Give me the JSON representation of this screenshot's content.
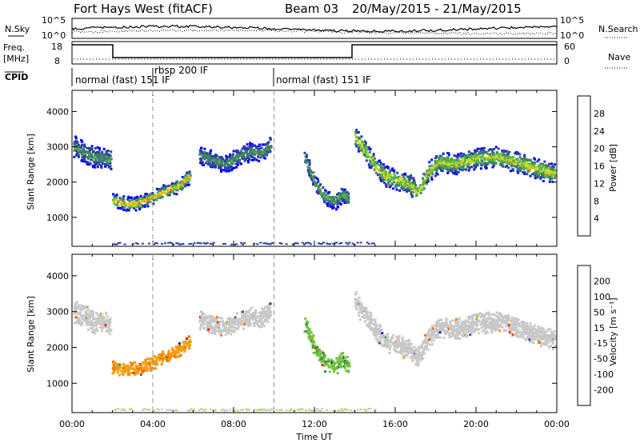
{
  "header": {
    "site": "Fort Hays West (fitACF)",
    "beam": "Beam 03",
    "dates": "20/May/2015 - 21/May/2015"
  },
  "strips": {
    "nsky_label": "N.Sky",
    "nsearch_label": "N.Search",
    "nsky_ticks": [
      "10^5",
      "10^0"
    ],
    "freq_label": "Freq.",
    "freq_unit": "[MHz]",
    "freq_ticks": [
      "18",
      "8"
    ],
    "nave_label": "Nave",
    "nave_ticks": [
      "60",
      "0"
    ],
    "cpid_label": "CPID",
    "cpid_segments": [
      {
        "label": "normal (fast) 151 IF",
        "start_h": 0,
        "end_h": 4
      },
      {
        "label": "rbsp 200 IF",
        "start_h": 4,
        "end_h": 10
      },
      {
        "label": "normal (fast) 151 IF",
        "start_h": 10,
        "end_h": 24
      }
    ]
  },
  "chart_data": [
    {
      "type": "heatmap",
      "quantity": "Power",
      "ylabel": "Slant Range [km]",
      "xlabel": "Time UT",
      "ylim": [
        180,
        4600
      ],
      "xlim_hours": [
        0,
        24
      ],
      "yticks": [
        1000,
        2000,
        3000,
        4000
      ],
      "colorbar": {
        "label": "Power [dB]",
        "ticks": [
          "28",
          "24",
          "20",
          "16",
          "12",
          "8",
          "4"
        ],
        "colors": [
          "#0000ff",
          "#2c3fa5",
          "#3f7f6a",
          "#56b34a",
          "#c8d820",
          "#ffb000",
          "#ff6a00",
          "#ff0000"
        ]
      },
      "echo_bands": [
        {
          "t": [
            0.0,
            0.5,
            1.0,
            1.5,
            1.9
          ],
          "center_km": [
            3050,
            2900,
            2750,
            2720,
            2650
          ],
          "width_km": 300,
          "peak_db": 14
        },
        {
          "t": [
            2.0,
            2.6,
            3.2,
            3.8,
            4.5,
            5.2,
            5.8
          ],
          "center_km": [
            1500,
            1420,
            1420,
            1550,
            1750,
            1900,
            2200
          ],
          "width_km": 180,
          "peak_db": 26
        },
        {
          "t": [
            6.3,
            7.0,
            7.6,
            8.2,
            8.8,
            9.4,
            9.8
          ],
          "center_km": [
            2800,
            2650,
            2550,
            2750,
            2900,
            2850,
            3100
          ],
          "width_km": 250,
          "peak_db": 14
        },
        {
          "t": [
            11.5,
            12.0,
            12.5,
            13.0,
            13.4,
            13.7
          ],
          "center_km": [
            2700,
            2000,
            1600,
            1500,
            1700,
            1500
          ],
          "width_km": 220,
          "peak_db": 16
        },
        {
          "t": [
            14.0,
            14.5,
            15.0,
            15.5,
            16.0,
            16.6,
            17.1,
            17.6,
            18.2,
            19.0,
            20.0,
            21.0,
            22.0,
            23.0,
            24.0
          ],
          "center_km": [
            3300,
            2900,
            2500,
            2200,
            2100,
            2000,
            1750,
            2300,
            2600,
            2550,
            2700,
            2750,
            2600,
            2400,
            2250
          ],
          "width_km": 280,
          "peak_db": 22
        }
      ]
    },
    {
      "type": "heatmap",
      "quantity": "Velocity",
      "ylabel": "Slant Range [km]",
      "xlabel": "Time UT",
      "ylim": [
        180,
        4600
      ],
      "xlim_hours": [
        0,
        24
      ],
      "yticks": [
        1000,
        2000,
        3000,
        4000
      ],
      "xticks": [
        "00:00",
        "04:00",
        "08:00",
        "12:00",
        "16:00",
        "20:00",
        "00:00"
      ],
      "colorbar": {
        "label": "Velocity [m s⁻¹]",
        "ticks": [
          "200",
          "100",
          "50",
          "15",
          "-15",
          "-50",
          "-100",
          "-200"
        ],
        "colors": [
          "#1d2fa8",
          "#2e5fa0",
          "#2f8f3a",
          "#74c043",
          "#a8dc58",
          "#c8c8c8",
          "#f0a010",
          "#ff7000",
          "#ff3800",
          "#ff0000"
        ]
      },
      "echo_bands": [
        {
          "t": [
            0.0,
            0.5,
            1.0,
            1.5,
            1.9
          ],
          "center_km": [
            3050,
            2900,
            2750,
            2720,
            2650
          ],
          "width_km": 300,
          "velocity": 0
        },
        {
          "t": [
            2.0,
            2.6,
            3.2,
            3.8,
            4.5,
            5.2,
            5.8
          ],
          "center_km": [
            1500,
            1420,
            1420,
            1550,
            1750,
            1900,
            2200
          ],
          "width_km": 180,
          "velocity": -40
        },
        {
          "t": [
            6.3,
            7.0,
            7.6,
            8.2,
            8.8,
            9.4,
            9.8
          ],
          "center_km": [
            2800,
            2650,
            2550,
            2750,
            2900,
            2850,
            3100
          ],
          "width_km": 250,
          "velocity": 0
        },
        {
          "t": [
            11.5,
            12.0,
            12.5,
            13.0,
            13.4,
            13.7
          ],
          "center_km": [
            2700,
            2000,
            1600,
            1500,
            1700,
            1500
          ],
          "width_km": 220,
          "velocity": 40
        },
        {
          "t": [
            14.0,
            14.5,
            15.0,
            15.5,
            16.0,
            16.6,
            17.1,
            17.6,
            18.2,
            19.0,
            20.0,
            21.0,
            22.0,
            23.0,
            24.0
          ],
          "center_km": [
            3300,
            2900,
            2500,
            2200,
            2100,
            2000,
            1750,
            2300,
            2600,
            2550,
            2700,
            2750,
            2600,
            2400,
            2250
          ],
          "width_km": 280,
          "velocity": 0
        }
      ]
    }
  ]
}
